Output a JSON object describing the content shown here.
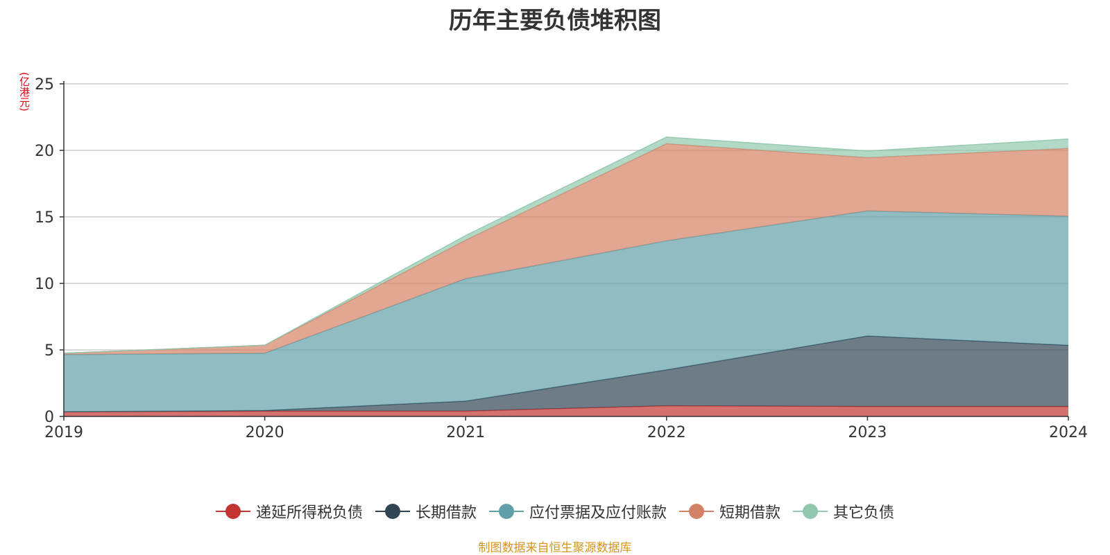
{
  "title": "历年主要负债堆积图",
  "unit_label": "(亿港元)",
  "source_note": "制图数据来自恒生聚源数据库",
  "chart_data": {
    "type": "area",
    "stacked": true,
    "title": "历年主要负债堆积图",
    "ylabel": "(亿港元)",
    "x": [
      "2019",
      "2020",
      "2021",
      "2022",
      "2023",
      "2024"
    ],
    "ylim": [
      0,
      25
    ],
    "yticks": [
      0,
      5,
      10,
      15,
      20,
      25
    ],
    "grid": true,
    "legend_position": "bottom",
    "series": [
      {
        "name": "递延所得税负债",
        "color": "#c23531",
        "values": [
          0.35,
          0.4,
          0.4,
          0.8,
          0.75,
          0.75
        ]
      },
      {
        "name": "长期借款",
        "color": "#2f4554",
        "values": [
          0.0,
          0.05,
          0.75,
          2.7,
          5.3,
          4.6
        ]
      },
      {
        "name": "应付票据及应付账款",
        "color": "#61a0a8",
        "values": [
          4.3,
          4.3,
          9.2,
          9.7,
          9.4,
          9.7
        ]
      },
      {
        "name": "短期借款",
        "color": "#d48265",
        "values": [
          0.1,
          0.6,
          2.9,
          7.3,
          4.0,
          5.1
        ]
      },
      {
        "name": "其它负债",
        "color": "#91c7ae",
        "values": [
          0.0,
          0.0,
          0.35,
          0.5,
          0.5,
          0.7
        ]
      }
    ]
  }
}
